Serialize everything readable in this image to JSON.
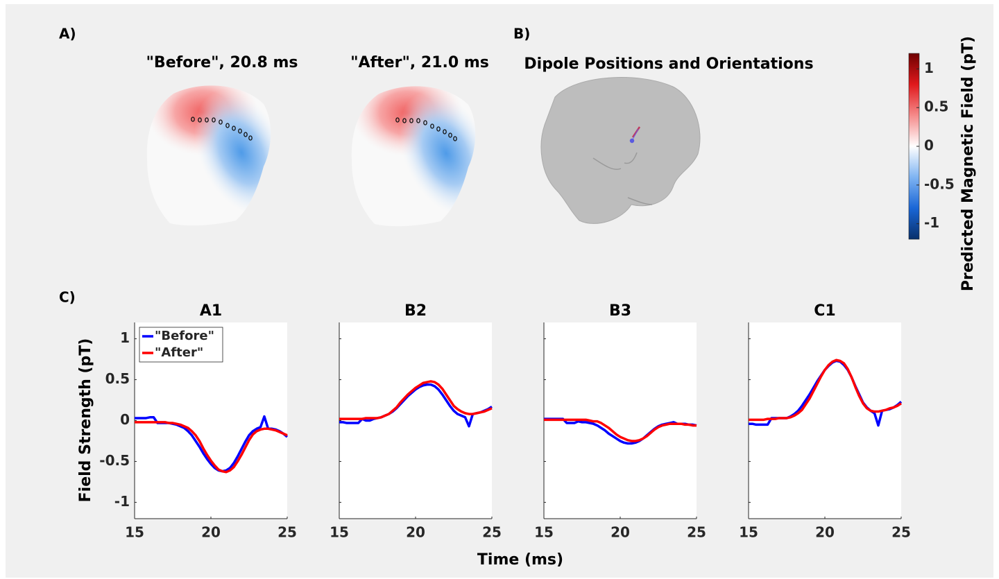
{
  "panels": {
    "a": {
      "label": "A)",
      "maps": [
        {
          "title": "\"Before\", 20.8 ms"
        },
        {
          "title": "\"After\", 21.0 ms"
        }
      ]
    },
    "b": {
      "label": "B)",
      "title": "Dipole Positions and Orientations"
    },
    "c": {
      "label": "C)",
      "xlabel": "Time (ms)",
      "ylabel": "Field Strength (pT)"
    }
  },
  "colorbar": {
    "label": "Predicted Magnetic Field (pT)",
    "lim": [
      -1.2,
      1.2
    ],
    "ticks": [
      -1,
      -0.5,
      0,
      0.5,
      1
    ],
    "colors": [
      "#08306b",
      "#1a66d6",
      "#7fb4f2",
      "#ffffff",
      "#f58a8a",
      "#e0191c",
      "#6e0000"
    ]
  },
  "chart_data": [
    {
      "type": "line",
      "title": "A1",
      "xlim": [
        15,
        25
      ],
      "ylim": [
        -1.2,
        1.2
      ],
      "xticks": [
        15,
        20,
        25
      ],
      "yticks": [
        -1,
        -0.5,
        0,
        0.5,
        1
      ],
      "ytick_labels": true,
      "legend": "upper left",
      "x": [
        15,
        15.25,
        15.5,
        15.75,
        16,
        16.25,
        16.5,
        16.75,
        17,
        17.25,
        17.5,
        17.75,
        18,
        18.25,
        18.5,
        18.75,
        19,
        19.25,
        19.5,
        19.75,
        20,
        20.25,
        20.5,
        20.75,
        21,
        21.25,
        21.5,
        21.75,
        22,
        22.25,
        22.5,
        22.75,
        23,
        23.25,
        23.5,
        23.75,
        24,
        24.25,
        24.5,
        24.75,
        25
      ],
      "series": [
        {
          "name": "\"Before\"",
          "color": "#0000ff",
          "values": [
            0.03,
            0.03,
            0.03,
            0.03,
            0.04,
            0.04,
            -0.03,
            -0.03,
            -0.03,
            -0.03,
            -0.04,
            -0.05,
            -0.07,
            -0.09,
            -0.13,
            -0.18,
            -0.25,
            -0.32,
            -0.4,
            -0.47,
            -0.53,
            -0.58,
            -0.61,
            -0.62,
            -0.61,
            -0.58,
            -0.52,
            -0.44,
            -0.35,
            -0.26,
            -0.18,
            -0.13,
            -0.1,
            -0.08,
            0.05,
            -0.1,
            -0.1,
            -0.11,
            -0.13,
            -0.16,
            -0.2
          ]
        },
        {
          "name": "\"After\"",
          "color": "#ff0000",
          "values": [
            -0.02,
            -0.02,
            -0.02,
            -0.02,
            -0.02,
            -0.02,
            -0.02,
            -0.02,
            -0.02,
            -0.03,
            -0.03,
            -0.04,
            -0.05,
            -0.07,
            -0.09,
            -0.13,
            -0.18,
            -0.25,
            -0.34,
            -0.42,
            -0.49,
            -0.55,
            -0.6,
            -0.62,
            -0.63,
            -0.61,
            -0.57,
            -0.5,
            -0.42,
            -0.33,
            -0.24,
            -0.17,
            -0.13,
            -0.11,
            -0.1,
            -0.1,
            -0.11,
            -0.12,
            -0.14,
            -0.16,
            -0.18
          ]
        }
      ]
    },
    {
      "type": "line",
      "title": "B2",
      "xlim": [
        15,
        25
      ],
      "ylim": [
        -1.2,
        1.2
      ],
      "xticks": [
        15,
        20,
        25
      ],
      "yticks": [
        -1,
        -0.5,
        0,
        0.5,
        1
      ],
      "ytick_labels": false,
      "x": [
        15,
        15.25,
        15.5,
        15.75,
        16,
        16.25,
        16.5,
        16.75,
        17,
        17.25,
        17.5,
        17.75,
        18,
        18.25,
        18.5,
        18.75,
        19,
        19.25,
        19.5,
        19.75,
        20,
        20.25,
        20.5,
        20.75,
        21,
        21.25,
        21.5,
        21.75,
        22,
        22.25,
        22.5,
        22.75,
        23,
        23.25,
        23.5,
        23.75,
        24,
        24.25,
        24.5,
        24.75,
        25
      ],
      "series": [
        {
          "color": "#0000ff",
          "values": [
            -0.02,
            -0.02,
            -0.03,
            -0.03,
            -0.03,
            -0.03,
            0.02,
            0.0,
            0.0,
            0.02,
            0.03,
            0.04,
            0.06,
            0.08,
            0.11,
            0.15,
            0.2,
            0.25,
            0.3,
            0.34,
            0.38,
            0.41,
            0.43,
            0.44,
            0.44,
            0.42,
            0.38,
            0.32,
            0.25,
            0.18,
            0.12,
            0.08,
            0.06,
            0.04,
            -0.07,
            0.08,
            0.09,
            0.1,
            0.12,
            0.14,
            0.17
          ]
        },
        {
          "color": "#ff0000",
          "values": [
            0.02,
            0.02,
            0.02,
            0.02,
            0.02,
            0.02,
            0.02,
            0.03,
            0.03,
            0.03,
            0.03,
            0.04,
            0.06,
            0.08,
            0.12,
            0.16,
            0.22,
            0.27,
            0.32,
            0.36,
            0.4,
            0.43,
            0.46,
            0.47,
            0.48,
            0.47,
            0.44,
            0.39,
            0.32,
            0.25,
            0.18,
            0.14,
            0.11,
            0.09,
            0.08,
            0.08,
            0.09,
            0.1,
            0.11,
            0.13,
            0.15
          ]
        }
      ]
    },
    {
      "type": "line",
      "title": "B3",
      "xlim": [
        15,
        25
      ],
      "ylim": [
        -1.2,
        1.2
      ],
      "xticks": [
        15,
        20,
        25
      ],
      "yticks": [
        -1,
        -0.5,
        0,
        0.5,
        1
      ],
      "ytick_labels": false,
      "x": [
        15,
        15.25,
        15.5,
        15.75,
        16,
        16.25,
        16.5,
        16.75,
        17,
        17.25,
        17.5,
        17.75,
        18,
        18.25,
        18.5,
        18.75,
        19,
        19.25,
        19.5,
        19.75,
        20,
        20.25,
        20.5,
        20.75,
        21,
        21.25,
        21.5,
        21.75,
        22,
        22.25,
        22.5,
        22.75,
        23,
        23.25,
        23.5,
        23.75,
        24,
        24.25,
        24.5,
        24.75,
        25
      ],
      "series": [
        {
          "color": "#0000ff",
          "values": [
            0.02,
            0.02,
            0.02,
            0.02,
            0.02,
            0.02,
            -0.03,
            -0.03,
            -0.03,
            -0.01,
            -0.02,
            -0.02,
            -0.03,
            -0.04,
            -0.06,
            -0.09,
            -0.12,
            -0.16,
            -0.19,
            -0.22,
            -0.25,
            -0.27,
            -0.28,
            -0.28,
            -0.27,
            -0.25,
            -0.22,
            -0.18,
            -0.14,
            -0.1,
            -0.07,
            -0.05,
            -0.04,
            -0.03,
            -0.02,
            -0.04,
            -0.04,
            -0.04,
            -0.05,
            -0.05,
            -0.06
          ]
        },
        {
          "color": "#ff0000",
          "values": [
            0.01,
            0.01,
            0.01,
            0.01,
            0.01,
            0.01,
            0.01,
            0.01,
            0.01,
            0.01,
            0.01,
            0.01,
            0.0,
            -0.01,
            -0.01,
            -0.03,
            -0.06,
            -0.09,
            -0.13,
            -0.17,
            -0.2,
            -0.22,
            -0.24,
            -0.25,
            -0.25,
            -0.24,
            -0.22,
            -0.19,
            -0.15,
            -0.11,
            -0.08,
            -0.06,
            -0.05,
            -0.04,
            -0.04,
            -0.04,
            -0.04,
            -0.05,
            -0.05,
            -0.06,
            -0.06
          ]
        }
      ]
    },
    {
      "type": "line",
      "title": "C1",
      "xlim": [
        15,
        25
      ],
      "ylim": [
        -1.2,
        1.2
      ],
      "xticks": [
        15,
        20,
        25
      ],
      "yticks": [
        -1,
        -0.5,
        0,
        0.5,
        1
      ],
      "ytick_labels": false,
      "x": [
        15,
        15.25,
        15.5,
        15.75,
        16,
        16.25,
        16.5,
        16.75,
        17,
        17.25,
        17.5,
        17.75,
        18,
        18.25,
        18.5,
        18.75,
        19,
        19.25,
        19.5,
        19.75,
        20,
        20.25,
        20.5,
        20.75,
        21,
        21.25,
        21.5,
        21.75,
        22,
        22.25,
        22.5,
        22.75,
        23,
        23.25,
        23.5,
        23.75,
        24,
        24.25,
        24.5,
        24.75,
        25
      ],
      "series": [
        {
          "color": "#0000ff",
          "values": [
            -0.04,
            -0.04,
            -0.05,
            -0.05,
            -0.05,
            -0.05,
            0.03,
            0.03,
            0.03,
            0.03,
            0.03,
            0.05,
            0.08,
            0.12,
            0.18,
            0.25,
            0.32,
            0.4,
            0.48,
            0.55,
            0.62,
            0.67,
            0.71,
            0.73,
            0.72,
            0.68,
            0.62,
            0.53,
            0.42,
            0.32,
            0.22,
            0.16,
            0.12,
            0.09,
            -0.06,
            0.12,
            0.13,
            0.14,
            0.16,
            0.19,
            0.23
          ]
        },
        {
          "color": "#ff0000",
          "values": [
            0.01,
            0.01,
            0.01,
            0.01,
            0.01,
            0.02,
            0.02,
            0.02,
            0.03,
            0.03,
            0.03,
            0.04,
            0.06,
            0.09,
            0.13,
            0.2,
            0.27,
            0.36,
            0.45,
            0.54,
            0.62,
            0.68,
            0.72,
            0.74,
            0.73,
            0.7,
            0.63,
            0.53,
            0.41,
            0.3,
            0.21,
            0.15,
            0.12,
            0.11,
            0.11,
            0.12,
            0.13,
            0.15,
            0.16,
            0.18,
            0.21
          ]
        }
      ]
    }
  ]
}
